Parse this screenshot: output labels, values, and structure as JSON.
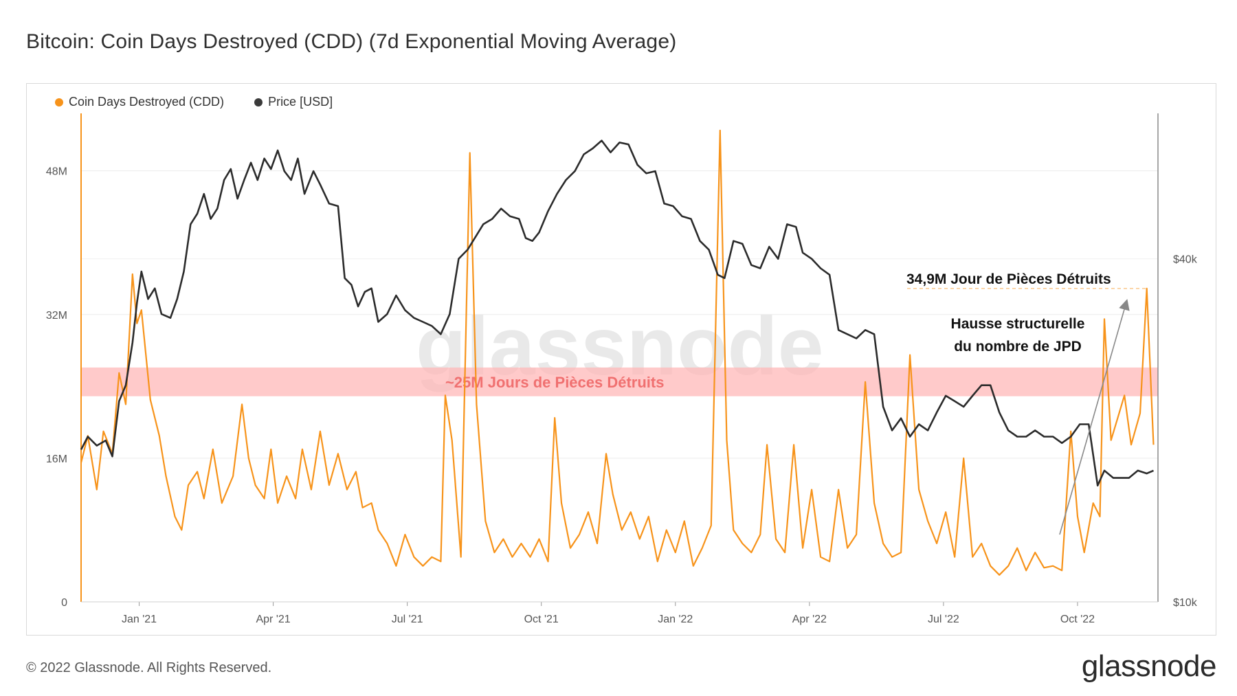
{
  "title": "Bitcoin: Coin Days Destroyed (CDD) (7d Exponential Moving Average)",
  "footer": {
    "copyright": "© 2022 Glassnode. All Rights Reserved.",
    "logo": "glassnode"
  },
  "watermark": "glassnode",
  "colors": {
    "cdd": "#f7931a",
    "price": "#2b2b2b",
    "band": "#ffb3b3",
    "band_text": "#f07070",
    "arrow": "#888888"
  },
  "chart_data": {
    "type": "line",
    "title": "Bitcoin: Coin Days Destroyed (CDD) (7d Exponential Moving Average)",
    "x_labels": [
      "Jan '21",
      "Apr '21",
      "Jul '21",
      "Oct '21",
      "Jan '22",
      "Apr '22",
      "Jul '22",
      "Oct '22"
    ],
    "x_label_months": [
      1,
      4,
      7,
      10,
      13,
      16,
      19,
      22
    ],
    "x_range_months": [
      -0.3,
      23.8
    ],
    "y_left": {
      "ticks": [
        "0",
        "16M",
        "32M",
        "48M"
      ],
      "tick_values": [
        0,
        16,
        32,
        48
      ],
      "range": [
        0,
        54.4
      ],
      "unit": "M"
    },
    "y_right": {
      "ticks": [
        "$10k",
        "$40k"
      ],
      "tick_values": [
        10000,
        40000
      ],
      "range": [
        10000,
        72000
      ],
      "scale": "log"
    },
    "legend": [
      {
        "name": "Coin Days Destroyed (CDD)",
        "color": "#f7931a"
      },
      {
        "name": "Price [USD]",
        "color": "#2b2b2b"
      }
    ],
    "band": {
      "from": 22.9,
      "to": 26.1,
      "label": "~25M Jours de Pièces Détruits"
    },
    "annotations": {
      "peak_label": "34,9M Jour de Pièces Détruits",
      "peak_value": 34.9,
      "trend_line1": "Hausse structurelle",
      "trend_line2": "du nombre de JPD"
    },
    "series": [
      {
        "name": "Coin Days Destroyed (CDD)",
        "axis": "left",
        "points": [
          [
            -0.3,
            15.5
          ],
          [
            -0.15,
            18.5
          ],
          [
            0.05,
            12.5
          ],
          [
            0.2,
            19.0
          ],
          [
            0.4,
            16.5
          ],
          [
            0.55,
            25.5
          ],
          [
            0.7,
            22.0
          ],
          [
            0.85,
            36.5
          ],
          [
            0.95,
            31.0
          ],
          [
            1.05,
            32.5
          ],
          [
            1.25,
            22.5
          ],
          [
            1.45,
            18.5
          ],
          [
            1.6,
            14.0
          ],
          [
            1.8,
            9.5
          ],
          [
            1.95,
            8.0
          ],
          [
            2.1,
            13.0
          ],
          [
            2.3,
            14.5
          ],
          [
            2.45,
            11.5
          ],
          [
            2.65,
            17.0
          ],
          [
            2.85,
            11.0
          ],
          [
            3.1,
            14.0
          ],
          [
            3.3,
            22.0
          ],
          [
            3.45,
            16.0
          ],
          [
            3.6,
            13.0
          ],
          [
            3.8,
            11.5
          ],
          [
            3.95,
            17.0
          ],
          [
            4.1,
            11.0
          ],
          [
            4.3,
            14.0
          ],
          [
            4.5,
            11.5
          ],
          [
            4.65,
            17.0
          ],
          [
            4.85,
            12.5
          ],
          [
            5.05,
            19.0
          ],
          [
            5.25,
            13.0
          ],
          [
            5.45,
            16.5
          ],
          [
            5.65,
            12.5
          ],
          [
            5.85,
            14.5
          ],
          [
            6.0,
            10.5
          ],
          [
            6.2,
            11.0
          ],
          [
            6.35,
            8.0
          ],
          [
            6.55,
            6.5
          ],
          [
            6.75,
            4.0
          ],
          [
            6.95,
            7.5
          ],
          [
            7.15,
            5.0
          ],
          [
            7.35,
            4.0
          ],
          [
            7.55,
            5.0
          ],
          [
            7.75,
            4.5
          ],
          [
            7.85,
            23.0
          ],
          [
            8.0,
            18.0
          ],
          [
            8.2,
            5.0
          ],
          [
            8.4,
            50.0
          ],
          [
            8.55,
            22.0
          ],
          [
            8.75,
            9.0
          ],
          [
            8.95,
            5.5
          ],
          [
            9.15,
            7.0
          ],
          [
            9.35,
            5.0
          ],
          [
            9.55,
            6.5
          ],
          [
            9.75,
            5.0
          ],
          [
            9.95,
            7.0
          ],
          [
            10.15,
            4.5
          ],
          [
            10.3,
            20.5
          ],
          [
            10.45,
            11.0
          ],
          [
            10.65,
            6.0
          ],
          [
            10.85,
            7.5
          ],
          [
            11.05,
            10.0
          ],
          [
            11.25,
            6.5
          ],
          [
            11.45,
            16.5
          ],
          [
            11.6,
            12.0
          ],
          [
            11.8,
            8.0
          ],
          [
            12.0,
            10.0
          ],
          [
            12.2,
            7.0
          ],
          [
            12.4,
            9.5
          ],
          [
            12.6,
            4.5
          ],
          [
            12.8,
            8.0
          ],
          [
            13.0,
            5.5
          ],
          [
            13.2,
            9.0
          ],
          [
            13.4,
            4.0
          ],
          [
            13.6,
            6.0
          ],
          [
            13.8,
            8.5
          ],
          [
            14.0,
            52.5
          ],
          [
            14.15,
            18.0
          ],
          [
            14.3,
            8.0
          ],
          [
            14.5,
            6.5
          ],
          [
            14.7,
            5.5
          ],
          [
            14.9,
            7.5
          ],
          [
            15.05,
            17.5
          ],
          [
            15.25,
            7.0
          ],
          [
            15.45,
            5.5
          ],
          [
            15.65,
            17.5
          ],
          [
            15.85,
            6.0
          ],
          [
            16.05,
            12.5
          ],
          [
            16.25,
            5.0
          ],
          [
            16.45,
            4.5
          ],
          [
            16.65,
            12.5
          ],
          [
            16.85,
            6.0
          ],
          [
            17.05,
            7.5
          ],
          [
            17.25,
            24.5
          ],
          [
            17.45,
            11.0
          ],
          [
            17.65,
            6.5
          ],
          [
            17.85,
            5.0
          ],
          [
            18.05,
            5.5
          ],
          [
            18.25,
            27.5
          ],
          [
            18.45,
            12.5
          ],
          [
            18.65,
            9.0
          ],
          [
            18.85,
            6.5
          ],
          [
            19.05,
            10.0
          ],
          [
            19.25,
            5.0
          ],
          [
            19.45,
            16.0
          ],
          [
            19.65,
            5.0
          ],
          [
            19.85,
            6.5
          ],
          [
            20.05,
            4.0
          ],
          [
            20.25,
            3.0
          ],
          [
            20.45,
            4.0
          ],
          [
            20.65,
            6.0
          ],
          [
            20.85,
            3.5
          ],
          [
            21.05,
            5.5
          ],
          [
            21.25,
            3.8
          ],
          [
            21.45,
            4.0
          ],
          [
            21.65,
            3.5
          ],
          [
            21.85,
            19.0
          ],
          [
            22.0,
            9.5
          ],
          [
            22.15,
            5.5
          ],
          [
            22.35,
            11.0
          ],
          [
            22.5,
            9.5
          ],
          [
            22.6,
            31.5
          ],
          [
            22.75,
            18.0
          ],
          [
            22.9,
            20.5
          ],
          [
            23.05,
            23.0
          ],
          [
            23.2,
            17.5
          ],
          [
            23.4,
            21.0
          ],
          [
            23.55,
            34.9
          ],
          [
            23.7,
            17.5
          ]
        ]
      },
      {
        "name": "Price [USD]",
        "axis": "right",
        "points": [
          [
            -0.3,
            18500
          ],
          [
            -0.15,
            19500
          ],
          [
            0.05,
            18800
          ],
          [
            0.25,
            19200
          ],
          [
            0.4,
            18000
          ],
          [
            0.55,
            22500
          ],
          [
            0.7,
            24000
          ],
          [
            0.85,
            28500
          ],
          [
            0.95,
            33500
          ],
          [
            1.05,
            38000
          ],
          [
            1.2,
            34000
          ],
          [
            1.35,
            35500
          ],
          [
            1.5,
            32000
          ],
          [
            1.7,
            31500
          ],
          [
            1.85,
            34000
          ],
          [
            2.0,
            38000
          ],
          [
            2.15,
            46000
          ],
          [
            2.3,
            48000
          ],
          [
            2.45,
            52000
          ],
          [
            2.6,
            47000
          ],
          [
            2.75,
            49000
          ],
          [
            2.9,
            55000
          ],
          [
            3.05,
            57500
          ],
          [
            3.2,
            51000
          ],
          [
            3.35,
            55000
          ],
          [
            3.5,
            59000
          ],
          [
            3.65,
            55000
          ],
          [
            3.8,
            60000
          ],
          [
            3.95,
            57500
          ],
          [
            4.1,
            62000
          ],
          [
            4.25,
            57000
          ],
          [
            4.4,
            55000
          ],
          [
            4.55,
            60000
          ],
          [
            4.7,
            52000
          ],
          [
            4.9,
            57000
          ],
          [
            5.05,
            54000
          ],
          [
            5.25,
            50000
          ],
          [
            5.45,
            49500
          ],
          [
            5.6,
            37000
          ],
          [
            5.75,
            36000
          ],
          [
            5.9,
            33000
          ],
          [
            6.05,
            35000
          ],
          [
            6.2,
            35500
          ],
          [
            6.35,
            31000
          ],
          [
            6.55,
            32000
          ],
          [
            6.75,
            34500
          ],
          [
            6.95,
            32500
          ],
          [
            7.15,
            31500
          ],
          [
            7.35,
            31000
          ],
          [
            7.55,
            30500
          ],
          [
            7.75,
            29500
          ],
          [
            7.95,
            32000
          ],
          [
            8.15,
            40000
          ],
          [
            8.35,
            41500
          ],
          [
            8.55,
            44000
          ],
          [
            8.7,
            46000
          ],
          [
            8.9,
            47000
          ],
          [
            9.1,
            49000
          ],
          [
            9.3,
            47500
          ],
          [
            9.5,
            47000
          ],
          [
            9.65,
            43500
          ],
          [
            9.8,
            43000
          ],
          [
            9.95,
            44500
          ],
          [
            10.15,
            48500
          ],
          [
            10.35,
            52000
          ],
          [
            10.55,
            55000
          ],
          [
            10.75,
            57000
          ],
          [
            10.95,
            61000
          ],
          [
            11.15,
            62500
          ],
          [
            11.35,
            64500
          ],
          [
            11.55,
            61500
          ],
          [
            11.75,
            64000
          ],
          [
            11.95,
            63500
          ],
          [
            12.15,
            58500
          ],
          [
            12.35,
            56500
          ],
          [
            12.55,
            57000
          ],
          [
            12.75,
            50000
          ],
          [
            12.95,
            49500
          ],
          [
            13.15,
            47500
          ],
          [
            13.35,
            47000
          ],
          [
            13.55,
            43000
          ],
          [
            13.75,
            41500
          ],
          [
            13.95,
            37500
          ],
          [
            14.1,
            37000
          ],
          [
            14.3,
            43000
          ],
          [
            14.5,
            42500
          ],
          [
            14.7,
            39000
          ],
          [
            14.9,
            38500
          ],
          [
            15.1,
            42000
          ],
          [
            15.3,
            40000
          ],
          [
            15.5,
            46000
          ],
          [
            15.7,
            45500
          ],
          [
            15.85,
            41000
          ],
          [
            16.05,
            40000
          ],
          [
            16.25,
            38500
          ],
          [
            16.45,
            37500
          ],
          [
            16.65,
            30000
          ],
          [
            16.85,
            29500
          ],
          [
            17.05,
            29000
          ],
          [
            17.25,
            30000
          ],
          [
            17.45,
            29500
          ],
          [
            17.65,
            22000
          ],
          [
            17.85,
            20000
          ],
          [
            18.05,
            21000
          ],
          [
            18.25,
            19500
          ],
          [
            18.45,
            20500
          ],
          [
            18.65,
            20000
          ],
          [
            18.85,
            21500
          ],
          [
            19.05,
            23000
          ],
          [
            19.25,
            22500
          ],
          [
            19.45,
            22000
          ],
          [
            19.65,
            23000
          ],
          [
            19.85,
            24000
          ],
          [
            20.05,
            24000
          ],
          [
            20.25,
            21500
          ],
          [
            20.45,
            20000
          ],
          [
            20.65,
            19500
          ],
          [
            20.85,
            19500
          ],
          [
            21.05,
            20000
          ],
          [
            21.25,
            19500
          ],
          [
            21.45,
            19500
          ],
          [
            21.65,
            19000
          ],
          [
            21.85,
            19500
          ],
          [
            22.05,
            20500
          ],
          [
            22.25,
            20500
          ],
          [
            22.45,
            16000
          ],
          [
            22.6,
            17000
          ],
          [
            22.8,
            16500
          ],
          [
            22.95,
            16500
          ],
          [
            23.15,
            16500
          ],
          [
            23.35,
            17000
          ],
          [
            23.55,
            16800
          ],
          [
            23.7,
            17000
          ]
        ]
      }
    ]
  }
}
